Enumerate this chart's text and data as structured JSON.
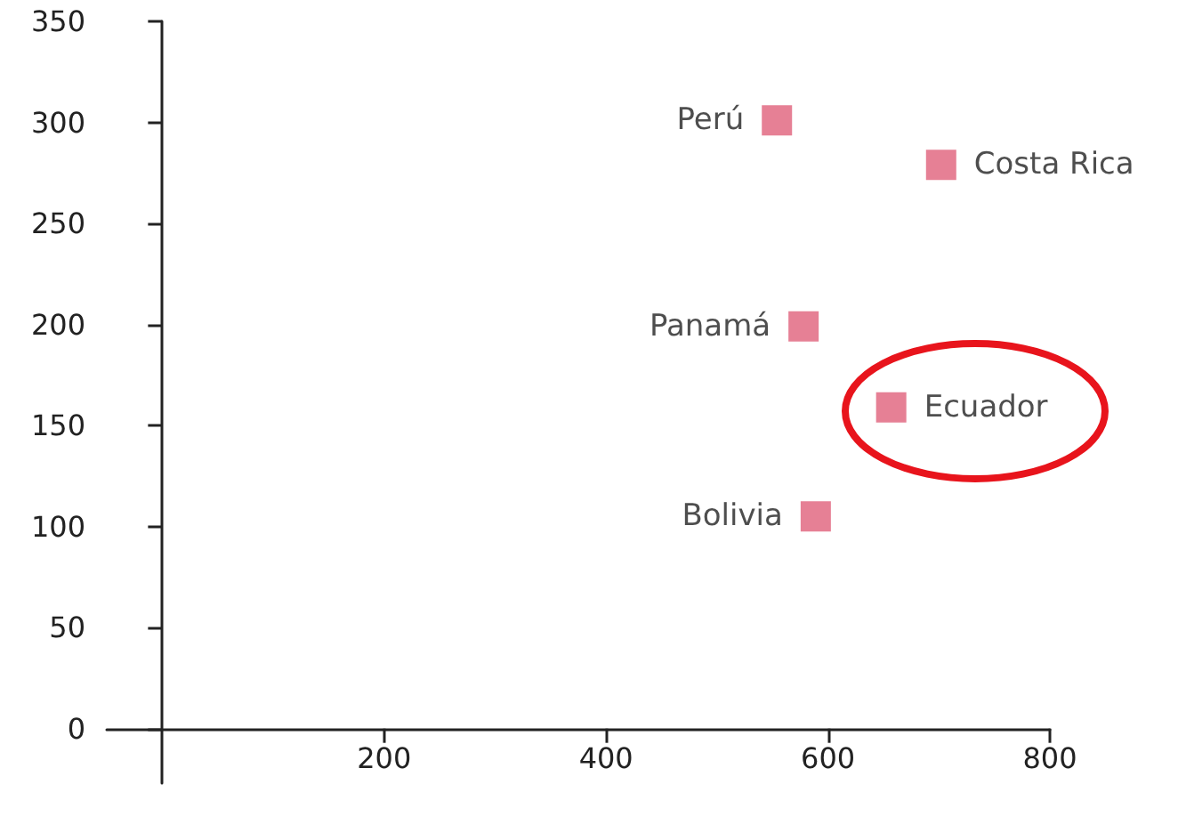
{
  "chart_data": {
    "type": "scatter",
    "marker": "square",
    "legend": false,
    "xlim": [
      -50,
      800
    ],
    "xticks": [
      200,
      400,
      600,
      800
    ],
    "ylim": [
      -27,
      350
    ],
    "yticks": [
      0,
      50,
      100,
      150,
      200,
      250,
      300,
      350
    ],
    "series": [
      {
        "name": "Perú",
        "color": "#e0607a",
        "x": [
          554
        ],
        "values": [
          301
        ]
      },
      {
        "name": "Costa Rica",
        "color": "#e0607a",
        "x": [
          702
        ],
        "values": [
          279
        ]
      },
      {
        "name": "Panamá",
        "color": "#e0607a",
        "x": [
          578
        ],
        "values": [
          199
        ]
      },
      {
        "name": "Ecuador",
        "color": "#e0607a",
        "x": [
          657
        ],
        "values": [
          159
        ]
      },
      {
        "name": "Bolivia",
        "color": "#e0607a",
        "x": [
          589
        ],
        "values": [
          105
        ]
      }
    ]
  }
}
